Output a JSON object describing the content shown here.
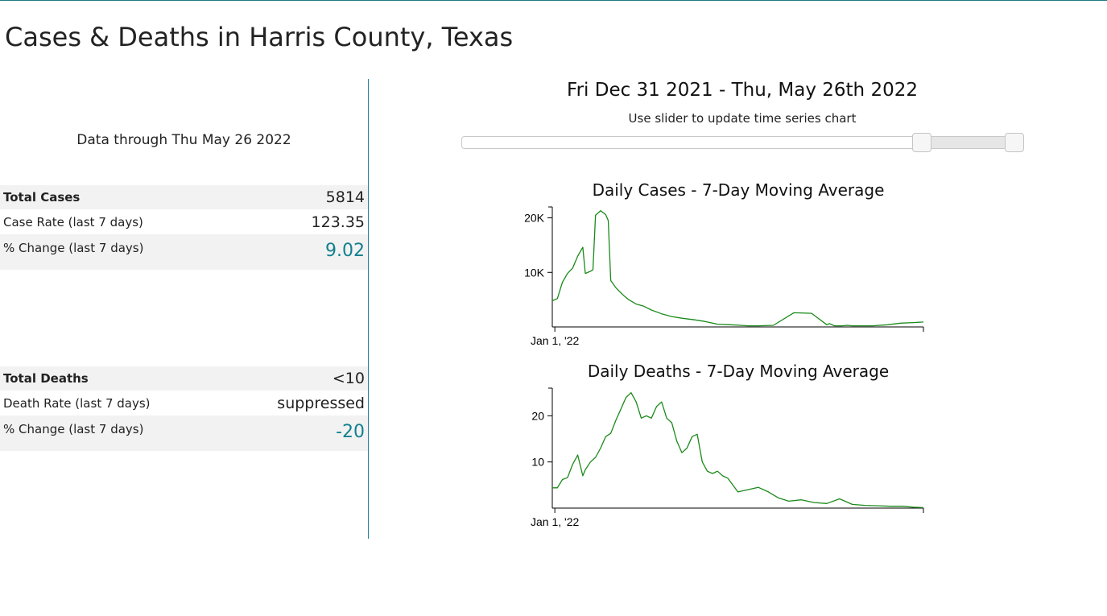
{
  "page": {
    "title": "Cases & Deaths in Harris County, Texas"
  },
  "summary": {
    "data_through": "Data through Thu May 26 2022",
    "cases": [
      {
        "label": "Total Cases",
        "value": "5814"
      },
      {
        "label": "Case Rate (last 7 days)",
        "value": "123.35"
      },
      {
        "label": "% Change (last 7 days)",
        "value": "9.02"
      }
    ],
    "deaths": [
      {
        "label": "Total Deaths",
        "value": "<10"
      },
      {
        "label": "Death Rate (last 7 days)",
        "value": "suppressed"
      },
      {
        "label": "% Change (last 7 days)",
        "value": "-20"
      }
    ]
  },
  "time_range": {
    "label": "Fri Dec 31 2021 - Thu, May 26th 2022",
    "hint": "Use slider to update time series chart",
    "selected_start_fraction": 0.82,
    "selected_end_fraction": 0.985
  },
  "colors": {
    "line": "#1a8a1a",
    "accent": "#13808f",
    "divider": "#1f7fa3"
  },
  "chart_data": [
    {
      "type": "line",
      "title": "Daily Cases - 7-Day Moving Average",
      "x_tick_labels": [
        "Jan 1, '22"
      ],
      "y_tick_labels": [
        "10K",
        "20K"
      ],
      "ylim": [
        0,
        22000
      ],
      "x_range": [
        "2021-12-31",
        "2022-05-26"
      ],
      "grid": false,
      "series": [
        {
          "x": [
            "2021-12-31",
            "2022-01-02",
            "2022-01-04",
            "2022-01-06",
            "2022-01-08",
            "2022-01-10",
            "2022-01-12",
            "2022-01-13",
            "2022-01-15",
            "2022-01-16",
            "2022-01-17",
            "2022-01-19",
            "2022-01-21",
            "2022-01-22",
            "2022-01-23",
            "2022-01-25",
            "2022-01-26",
            "2022-01-28",
            "2022-01-30",
            "2022-02-02",
            "2022-02-05",
            "2022-02-08",
            "2022-02-12",
            "2022-02-16",
            "2022-02-20",
            "2022-02-25",
            "2022-03-01",
            "2022-03-06",
            "2022-03-11",
            "2022-03-15",
            "2022-03-18",
            "2022-03-22",
            "2022-03-28",
            "2022-04-05",
            "2022-04-12",
            "2022-04-18",
            "2022-04-19",
            "2022-04-21",
            "2022-04-24",
            "2022-04-26",
            "2022-04-28",
            "2022-05-02",
            "2022-05-06",
            "2022-05-12",
            "2022-05-17",
            "2022-05-22",
            "2022-05-26"
          ],
          "values": [
            4800,
            5200,
            8200,
            9800,
            10800,
            13000,
            14600,
            9800,
            10200,
            10500,
            20500,
            21300,
            20600,
            19500,
            8500,
            7200,
            6700,
            5800,
            5000,
            4200,
            3800,
            3100,
            2400,
            1900,
            1600,
            1300,
            1000,
            500,
            400,
            300,
            200,
            200,
            300,
            2600,
            2500,
            400,
            600,
            200,
            200,
            300,
            200,
            200,
            200,
            400,
            700,
            800,
            900
          ]
        }
      ]
    },
    {
      "type": "line",
      "title": "Daily Deaths - 7-Day Moving Average",
      "x_tick_labels": [
        "Jan 1, '22"
      ],
      "y_tick_labels": [
        "10",
        "20"
      ],
      "ylim": [
        0,
        26
      ],
      "x_range": [
        "2021-12-31",
        "2022-05-26"
      ],
      "grid": false,
      "series": [
        {
          "x": [
            "2021-12-31",
            "2022-01-02",
            "2022-01-04",
            "2022-01-06",
            "2022-01-08",
            "2022-01-10",
            "2022-01-12",
            "2022-01-13",
            "2022-01-15",
            "2022-01-17",
            "2022-01-19",
            "2022-01-21",
            "2022-01-23",
            "2022-01-25",
            "2022-01-27",
            "2022-01-29",
            "2022-01-31",
            "2022-02-02",
            "2022-02-04",
            "2022-02-06",
            "2022-02-08",
            "2022-02-10",
            "2022-02-12",
            "2022-02-14",
            "2022-02-16",
            "2022-02-18",
            "2022-02-20",
            "2022-02-22",
            "2022-02-24",
            "2022-02-26",
            "2022-02-28",
            "2022-03-02",
            "2022-03-04",
            "2022-03-06",
            "2022-03-08",
            "2022-03-10",
            "2022-03-12",
            "2022-03-14",
            "2022-03-18",
            "2022-03-22",
            "2022-03-26",
            "2022-03-30",
            "2022-04-03",
            "2022-04-08",
            "2022-04-13",
            "2022-04-18",
            "2022-04-23",
            "2022-04-28",
            "2022-05-03",
            "2022-05-08",
            "2022-05-13",
            "2022-05-18",
            "2022-05-22",
            "2022-05-26"
          ],
          "values": [
            4.4,
            4.4,
            6.2,
            6.6,
            9.5,
            11.5,
            7.0,
            8.3,
            10.0,
            11.0,
            13.0,
            15.5,
            16.2,
            19.0,
            21.5,
            24.0,
            25.0,
            23.0,
            19.5,
            20.0,
            19.5,
            22.0,
            23.0,
            19.5,
            18.5,
            14.5,
            12.0,
            13.0,
            15.5,
            16.0,
            10.0,
            8.0,
            7.5,
            8.0,
            7.0,
            6.5,
            5.0,
            3.5,
            4.0,
            4.5,
            3.5,
            2.2,
            1.5,
            1.8,
            1.2,
            1.0,
            2.0,
            0.8,
            0.6,
            0.5,
            0.4,
            0.4,
            0.2,
            0.1
          ]
        }
      ]
    }
  ]
}
